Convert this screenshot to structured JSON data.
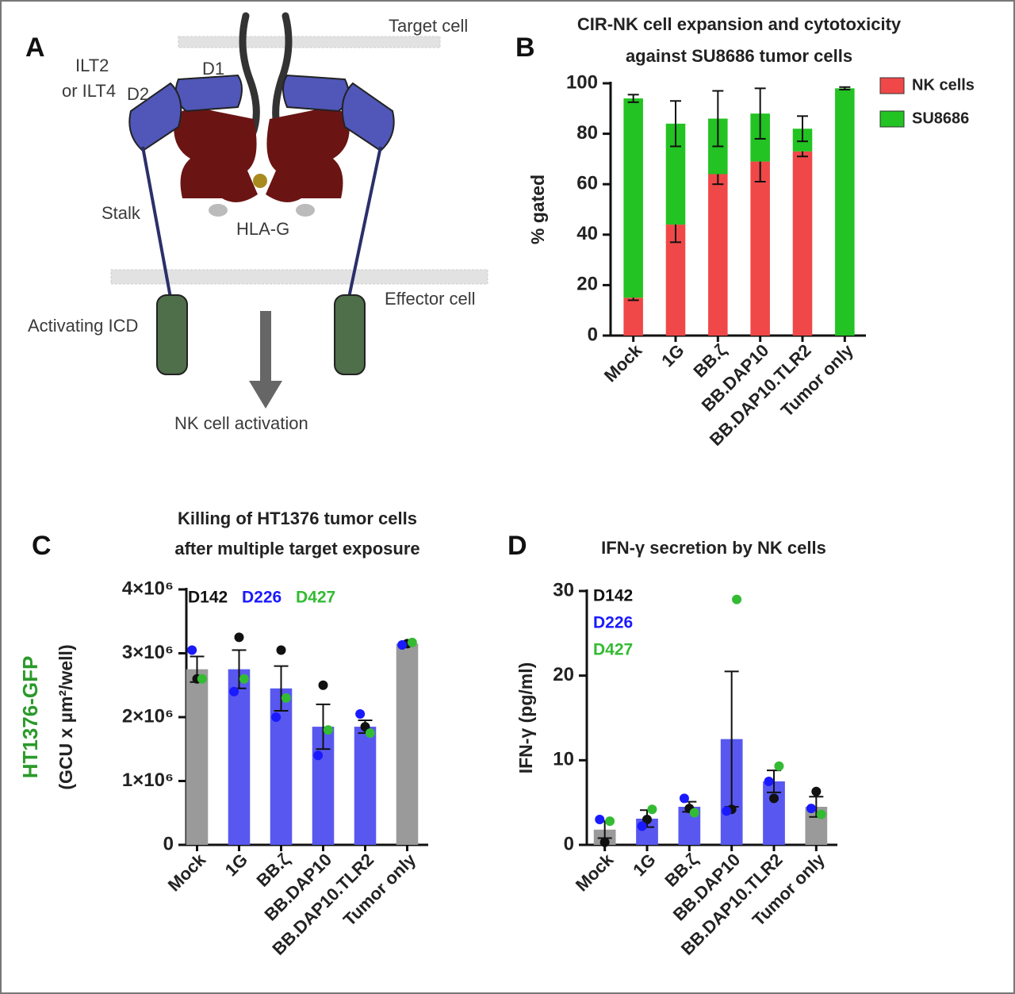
{
  "diagram": {
    "panel_label": "A",
    "target_label": "Target cell",
    "d1_label": "D1",
    "ilt_label": [
      "ILT2",
      "or ILT4"
    ],
    "d2_label": "D2",
    "stalk_label": "Stalk",
    "hla_label": "HLA-G",
    "effector_label": "Effector cell",
    "icd_label": "Activating ICD",
    "activation_label": "NK cell activation"
  },
  "chart_data": [
    {
      "type": "stacked_bar",
      "panel_label": "B",
      "title": [
        "CIR-NK cell expansion and cytotoxicity",
        "against SU8686 tumor cells"
      ],
      "ylabel": [
        "% gated"
      ],
      "categories": [
        "Mock",
        "1G",
        "BB.ζ",
        "BB.DAP10",
        "BB.DAP10.TLR2",
        "Tumor only"
      ],
      "series": [
        {
          "name": "NK cells",
          "color": "#f04848",
          "values": [
            15,
            44,
            64,
            69,
            73,
            0
          ],
          "errors": [
            1,
            7,
            4,
            8,
            2,
            0
          ]
        },
        {
          "name": "SU8686",
          "color": "#22c322",
          "values": [
            79,
            40,
            22,
            19,
            9,
            98
          ],
          "errors": [
            1.5,
            9,
            11,
            10,
            5,
            0.5
          ]
        }
      ],
      "ylim": [
        0,
        100
      ],
      "yticks": [
        0,
        20,
        40,
        60,
        80,
        100
      ],
      "legend": "right"
    },
    {
      "type": "bar",
      "panel_label": "C",
      "title": [
        "Killing of HT1376 tumor cells",
        "after multiple target exposure"
      ],
      "ylabel": [
        "HT1376-GFP",
        "(GCU x µm²/well)"
      ],
      "categories": [
        "Mock",
        "1G",
        "BB.ζ",
        "BB.DAP10",
        "BB.DAP10.TLR2",
        "Tumor only"
      ],
      "values": [
        2750000,
        2750000,
        2450000,
        1850000,
        1850000,
        3150000
      ],
      "errors": [
        200000,
        300000,
        350000,
        350000,
        100000,
        30000
      ],
      "colors": [
        "#9a9a9a",
        "#5858f0",
        "#5858f0",
        "#5858f0",
        "#5858f0",
        "#9a9a9a"
      ],
      "series": [
        {
          "name": "D142",
          "color": "#111111",
          "values": [
            2600000,
            3250000,
            3050000,
            2500000,
            1850000,
            3150000
          ]
        },
        {
          "name": "D226",
          "color": "#1a1aff",
          "values": [
            3050000,
            2400000,
            2000000,
            1400000,
            2050000,
            3130000
          ]
        },
        {
          "name": "D427",
          "color": "#33bb33",
          "values": [
            2600000,
            2600000,
            2300000,
            1800000,
            1750000,
            3170000
          ]
        }
      ],
      "ylim": [
        0,
        4000000
      ],
      "yticks": [
        0,
        {
          "value": 1000000,
          "label": "1×10⁶"
        },
        {
          "value": 2000000,
          "label": "2×10⁶"
        },
        {
          "value": 3000000,
          "label": "3×10⁶"
        },
        {
          "value": 4000000,
          "label": "4×10⁶"
        }
      ],
      "legend": "upper left"
    },
    {
      "type": "bar",
      "panel_label": "D",
      "title": [
        "IFN-γ secretion by NK cells"
      ],
      "ylabel": [
        "IFN-γ (pg/ml)"
      ],
      "categories": [
        "Mock",
        "1G",
        "BB.ζ",
        "BB.DAP10",
        "BB.DAP10.TLR2",
        "Tumor only"
      ],
      "values": [
        1.8,
        3.1,
        4.5,
        12.5,
        7.5,
        4.5
      ],
      "errors": [
        1,
        1,
        0.6,
        8,
        1.3,
        1.2
      ],
      "colors": [
        "#9a9a9a",
        "#5858f0",
        "#5858f0",
        "#5858f0",
        "#5858f0",
        "#9a9a9a"
      ],
      "series": [
        {
          "name": "D142",
          "color": "#111111",
          "values": [
            0.3,
            3.0,
            4.3,
            4.2,
            5.5,
            6.3
          ]
        },
        {
          "name": "D226",
          "color": "#1a1aff",
          "values": [
            3.0,
            2.2,
            5.5,
            4.0,
            7.5,
            4.3
          ]
        },
        {
          "name": "D427",
          "color": "#33bb33",
          "values": [
            2.8,
            4.2,
            3.8,
            29,
            9.3,
            3.6
          ]
        }
      ],
      "ylim": [
        0,
        30
      ],
      "yticks": [
        0,
        10,
        20,
        30
      ],
      "legend": "upper left"
    }
  ]
}
